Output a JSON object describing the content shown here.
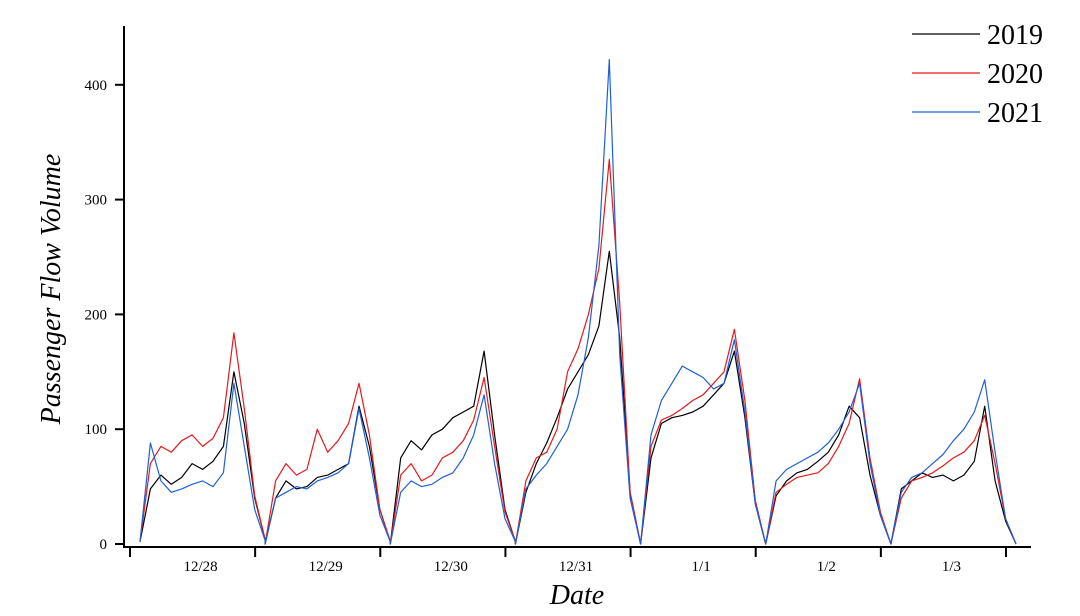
{
  "chart_data": {
    "type": "line",
    "xlabel": "Date",
    "ylabel": "Passenger Flow Volume",
    "ylim": [
      0,
      450
    ],
    "yticks": [
      0,
      100,
      200,
      300,
      400
    ],
    "categories": [
      "12/28",
      "12/29",
      "12/30",
      "12/31",
      "1/1",
      "1/2",
      "1/3"
    ],
    "points_per_day": 12,
    "legend_position": "top-right",
    "grid": false,
    "series": [
      {
        "name": "2019",
        "color": "#000000",
        "values": [
          [
            2,
            48,
            60,
            52,
            58,
            70,
            65,
            72,
            85,
            150,
            105,
            40,
            4
          ],
          [
            0,
            40,
            55,
            48,
            50,
            58,
            60,
            65,
            70,
            120,
            85,
            30,
            2
          ],
          [
            0,
            75,
            90,
            82,
            95,
            100,
            110,
            115,
            120,
            168,
            95,
            30,
            2
          ],
          [
            0,
            45,
            70,
            88,
            110,
            135,
            150,
            165,
            190,
            255,
            180,
            45,
            0
          ],
          [
            0,
            75,
            105,
            110,
            112,
            115,
            120,
            130,
            140,
            168,
            110,
            35,
            0
          ],
          [
            0,
            42,
            55,
            62,
            65,
            72,
            80,
            95,
            120,
            110,
            60,
            25,
            0
          ],
          [
            0,
            48,
            55,
            62,
            58,
            60,
            55,
            60,
            72,
            120,
            55,
            20,
            0
          ]
        ]
      },
      {
        "name": "2020",
        "color": "#e31a1c",
        "values": [
          [
            2,
            70,
            85,
            80,
            90,
            95,
            85,
            92,
            110,
            184,
            118,
            42,
            4
          ],
          [
            0,
            55,
            70,
            60,
            65,
            100,
            80,
            90,
            105,
            140,
            95,
            30,
            2
          ],
          [
            0,
            60,
            70,
            55,
            60,
            75,
            80,
            90,
            108,
            145,
            85,
            28,
            2
          ],
          [
            0,
            55,
            75,
            80,
            100,
            150,
            170,
            200,
            240,
            335,
            210,
            45,
            0
          ],
          [
            0,
            85,
            108,
            112,
            118,
            125,
            130,
            140,
            150,
            187,
            125,
            38,
            0
          ],
          [
            0,
            45,
            52,
            58,
            60,
            62,
            70,
            85,
            105,
            144,
            75,
            28,
            0
          ],
          [
            0,
            40,
            55,
            58,
            62,
            68,
            75,
            80,
            90,
            112,
            70,
            22,
            0
          ]
        ]
      },
      {
        "name": "2021",
        "color": "#1f5fd6",
        "values": [
          [
            2,
            88,
            55,
            45,
            48,
            52,
            55,
            50,
            62,
            140,
            85,
            30,
            3
          ],
          [
            0,
            40,
            45,
            50,
            48,
            55,
            58,
            62,
            70,
            118,
            75,
            25,
            2
          ],
          [
            0,
            45,
            55,
            50,
            52,
            58,
            62,
            75,
            95,
            130,
            70,
            22,
            2
          ],
          [
            0,
            48,
            60,
            70,
            85,
            100,
            130,
            180,
            260,
            422,
            165,
            40,
            0
          ],
          [
            0,
            95,
            125,
            140,
            155,
            150,
            145,
            135,
            140,
            178,
            115,
            35,
            0
          ],
          [
            0,
            55,
            65,
            70,
            75,
            80,
            88,
            100,
            115,
            140,
            70,
            25,
            0
          ],
          [
            0,
            45,
            58,
            62,
            70,
            78,
            90,
            100,
            115,
            143,
            80,
            22,
            0
          ]
        ]
      }
    ]
  }
}
